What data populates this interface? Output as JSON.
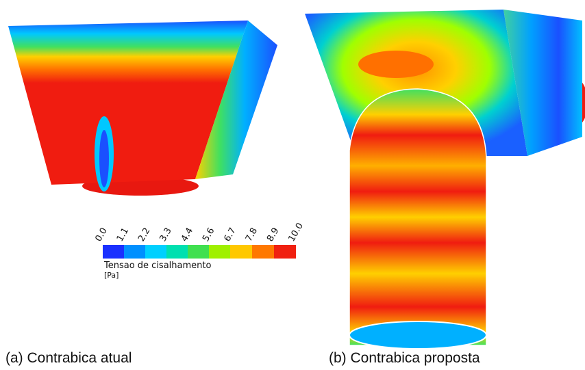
{
  "legend": {
    "ticks": [
      "0.0",
      "1.1",
      "2.2",
      "3.3",
      "4.4",
      "5.6",
      "6.7",
      "7.8",
      "8.9",
      "10.0"
    ],
    "title": "Tensao de cisalhamento",
    "unit": "[Pa]"
  },
  "captions": [
    "(a) Contrabica atual",
    "(b) Contrabica proposta"
  ]
}
